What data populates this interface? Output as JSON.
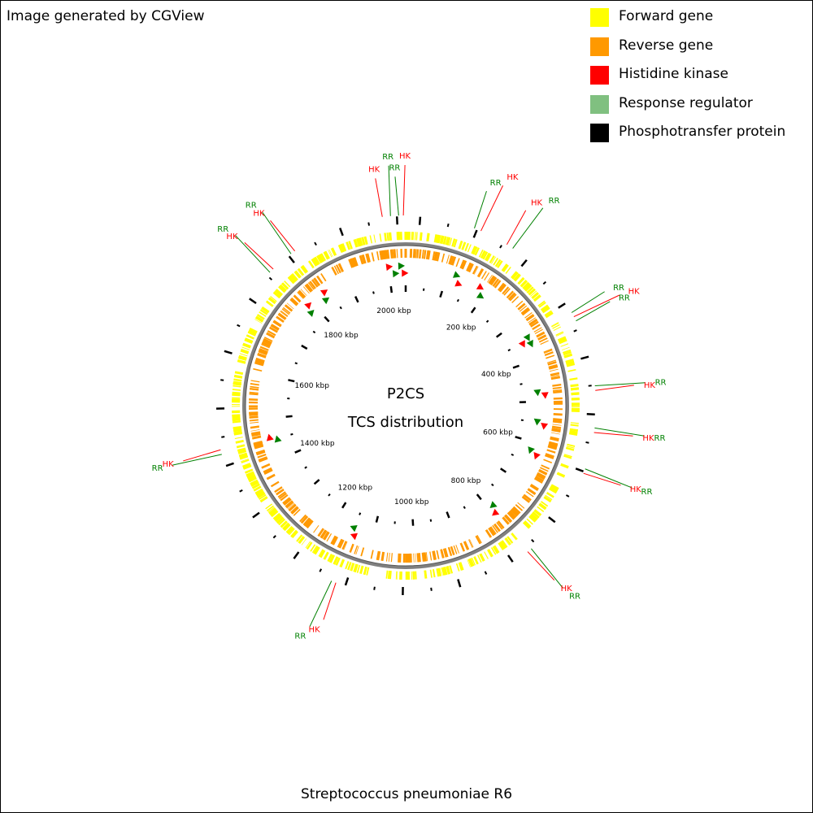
{
  "credit": "Image generated by CGView",
  "footer": "Streptococcus pneumoniae R6",
  "center": {
    "line1": "P2CS",
    "line2": "TCS distribution"
  },
  "legend": [
    {
      "label": "Forward gene",
      "color": "#ffff00"
    },
    {
      "label": "Reverse gene",
      "color": "#ff9900"
    },
    {
      "label": "Histidine kinase",
      "color": "#ff0000"
    },
    {
      "label": "Response regulator",
      "color": "#80c080"
    },
    {
      "label": "Phosphotransfer protein",
      "color": "#000000"
    }
  ],
  "colors": {
    "forward": "#ffff00",
    "reverse": "#ff9900",
    "hk": "#ff0000",
    "rr": "#008000",
    "backbone": "#808080"
  },
  "genome": {
    "length_kbp": 2040
  },
  "scale_labels": [
    "200 kbp",
    "400 kbp",
    "600 kbp",
    "800 kbp",
    "1000 kbp",
    "1200 kbp",
    "1400 kbp",
    "1600 kbp",
    "1800 kbp",
    "2000 kbp"
  ],
  "tcs_labels": [
    {
      "text": "HK",
      "type": "hk",
      "kbp": 2000
    },
    {
      "text": "RR",
      "type": "rr",
      "kbp": 2014
    },
    {
      "text": "RR",
      "type": "rr",
      "kbp": 2028
    },
    {
      "text": "HK",
      "type": "hk",
      "kbp": 2036
    },
    {
      "text": "RR",
      "type": "rr",
      "kbp": 120
    },
    {
      "text": "HK",
      "type": "hk",
      "kbp": 132
    },
    {
      "text": "HK",
      "type": "hk",
      "kbp": 182
    },
    {
      "text": "RR",
      "type": "rr",
      "kbp": 194
    },
    {
      "text": "RR",
      "type": "rr",
      "kbp": 344
    },
    {
      "text": "HK",
      "type": "hk",
      "kbp": 352
    },
    {
      "text": "RR",
      "type": "rr",
      "kbp": 360
    },
    {
      "text": "RR",
      "type": "rr",
      "kbp": 476
    },
    {
      "text": "HK",
      "type": "hk",
      "kbp": 484
    },
    {
      "text": "RR",
      "type": "rr",
      "kbp": 548
    },
    {
      "text": "HK",
      "type": "hk",
      "kbp": 556
    },
    {
      "text": "RR",
      "type": "rr",
      "kbp": 620
    },
    {
      "text": "HK",
      "type": "hk",
      "kbp": 628
    },
    {
      "text": "RR",
      "type": "rr",
      "kbp": 786
    },
    {
      "text": "HK",
      "type": "hk",
      "kbp": 794
    },
    {
      "text": "RR",
      "type": "rr",
      "kbp": 1150
    },
    {
      "text": "HK",
      "type": "hk",
      "kbp": 1142
    },
    {
      "text": "RR",
      "type": "rr",
      "kbp": 1446
    },
    {
      "text": "HK",
      "type": "hk",
      "kbp": 1454
    },
    {
      "text": "RR",
      "type": "rr",
      "kbp": 1782
    },
    {
      "text": "HK",
      "type": "hk",
      "kbp": 1790
    },
    {
      "text": "RR",
      "type": "rr",
      "kbp": 1830
    },
    {
      "text": "HK",
      "type": "hk",
      "kbp": 1838
    }
  ]
}
